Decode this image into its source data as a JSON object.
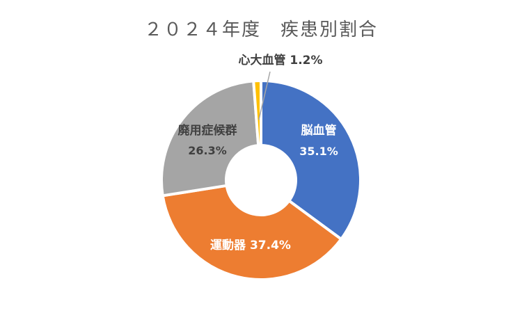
{
  "chart_data": {
    "type": "pie",
    "title": "２０２４年度　疾患別割合",
    "categories": [
      "脳血管",
      "運動器",
      "廃用症候群",
      "心大血管"
    ],
    "values": [
      35.1,
      37.4,
      26.3,
      1.2
    ],
    "value_labels": [
      "35.1%",
      "37.4%",
      "26.3%",
      "1.2%"
    ],
    "colors": [
      "#4472C4",
      "#ED7D31",
      "#A5A5A5",
      "#FFC000"
    ],
    "donut": true,
    "legend": "none"
  }
}
